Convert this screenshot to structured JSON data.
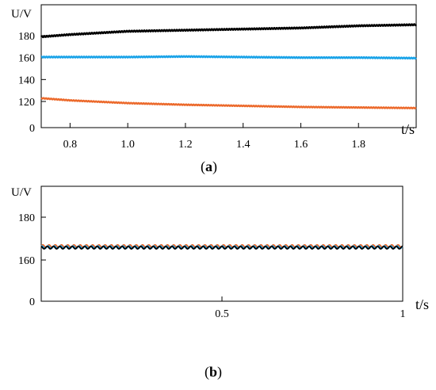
{
  "chart_data": [
    {
      "id": "a",
      "type": "line",
      "caption": "(a)",
      "caption_letter": "a",
      "ylabel": "U/V",
      "xlabel": "t/s",
      "xlim": [
        0.7,
        2.0
      ],
      "xticks": [
        0.8,
        1.0,
        1.2,
        1.4,
        1.6,
        1.8
      ],
      "xtick_labels": [
        "0.8",
        "1.0",
        "1.2",
        "1.4",
        "1.6",
        "1.8"
      ],
      "yticks": [
        0,
        120,
        140,
        160,
        180
      ],
      "ytick_labels": [
        "0",
        "120",
        "140",
        "160",
        "180"
      ],
      "y_axis_break": true,
      "grid": false,
      "series": [
        {
          "color": "#000000",
          "ripple": 0.6,
          "x": [
            0.7,
            0.8,
            1.0,
            1.2,
            1.4,
            1.6,
            1.8,
            2.0
          ],
          "y": [
            179,
            181,
            184,
            185,
            186,
            187,
            189,
            190
          ]
        },
        {
          "color": "#1aa3e8",
          "ripple": 0.5,
          "x": [
            0.7,
            1.0,
            1.2,
            1.4,
            1.6,
            1.8,
            2.0
          ],
          "y": [
            160.5,
            160.5,
            161,
            160.5,
            160,
            160,
            159.5
          ]
        },
        {
          "color": "#ec6a2c",
          "ripple": 0.4,
          "x": [
            0.7,
            0.8,
            1.0,
            1.2,
            1.4,
            1.6,
            1.8,
            2.0
          ],
          "y": [
            123,
            121,
            118.5,
            117,
            116,
            115,
            114.5,
            114
          ]
        }
      ]
    },
    {
      "id": "b",
      "type": "line",
      "caption": "(b)",
      "caption_letter": "b",
      "ylabel": "U/V",
      "xlabel": "t/s",
      "xlim": [
        0,
        1
      ],
      "xticks": [
        0.5,
        1
      ],
      "xtick_labels": [
        "0.5",
        "1"
      ],
      "yticks": [
        0,
        160,
        180
      ],
      "ytick_labels": [
        "0",
        "160",
        "180"
      ],
      "y_axis_break": true,
      "grid": false,
      "series": [
        {
          "color": "#ec6a2c",
          "ripple": 0.6,
          "x": [
            0,
            1
          ],
          "y": [
            166.5,
            166.5
          ]
        },
        {
          "color": "#1aa3e8",
          "ripple": 0.6,
          "x": [
            0,
            1
          ],
          "y": [
            166,
            166
          ]
        },
        {
          "color": "#000000",
          "ripple": 0.6,
          "x": [
            0,
            1
          ],
          "y": [
            165.8,
            165.8
          ]
        }
      ]
    }
  ]
}
